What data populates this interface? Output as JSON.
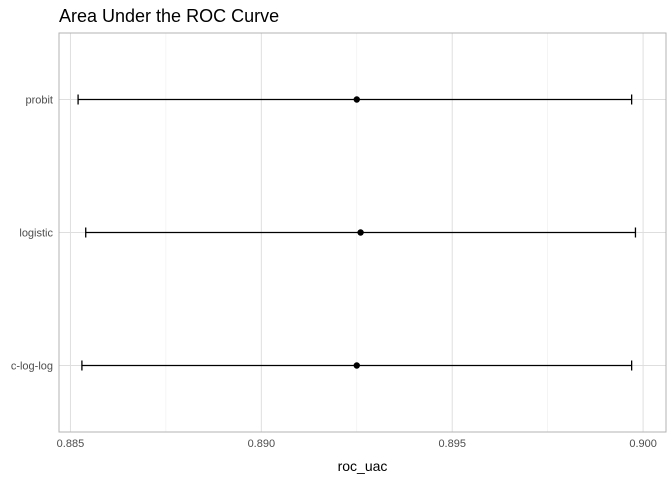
{
  "chart_data": {
    "type": "errorbar",
    "title": "Area Under the ROC Curve",
    "xlabel": "roc_uac",
    "ylabel": "",
    "xlim": [
      0.8847,
      0.9006
    ],
    "xticks": [
      0.885,
      0.89,
      0.895,
      0.9
    ],
    "xtick_labels": [
      "0.885",
      "0.890",
      "0.895",
      "0.900"
    ],
    "categories": [
      "probit",
      "logistic",
      "c-log-log"
    ],
    "estimates": [
      0.8925,
      0.8926,
      0.8925
    ],
    "lower": [
      0.8852,
      0.8854,
      0.8853
    ],
    "upper": [
      0.8997,
      0.8998,
      0.8997
    ],
    "grid": true,
    "legend": "none",
    "colors": {
      "panel_border": "#b3b3b3",
      "grid_major": "#dedede",
      "grid_minor": "#eeeeee",
      "mark": "#000000"
    }
  }
}
